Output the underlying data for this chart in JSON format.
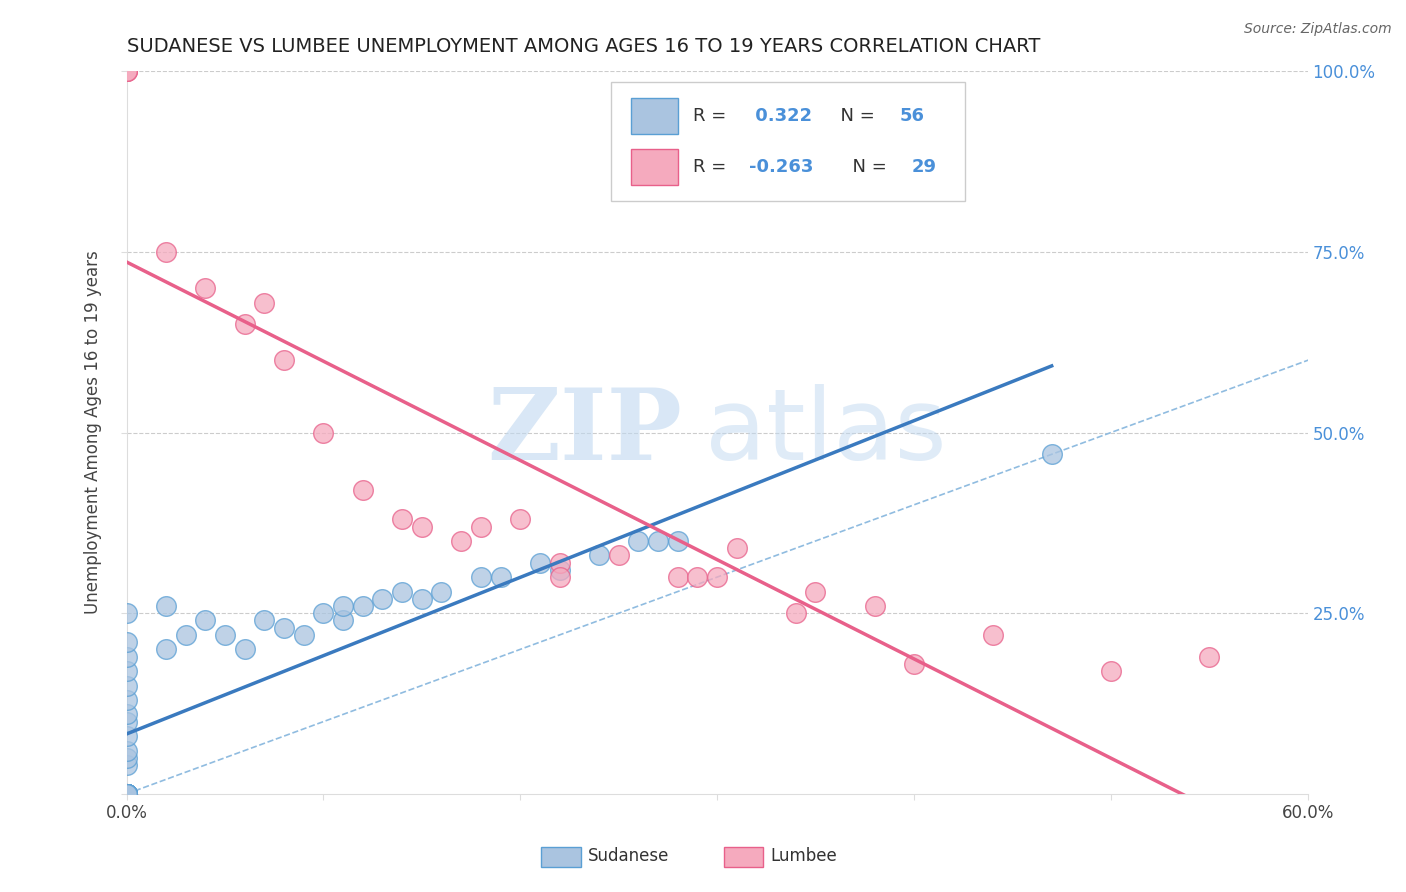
{
  "title": "SUDANESE VS LUMBEE UNEMPLOYMENT AMONG AGES 16 TO 19 YEARS CORRELATION CHART",
  "source": "Source: ZipAtlas.com",
  "ylabel": "Unemployment Among Ages 16 to 19 years",
  "xlim": [
    0.0,
    0.6
  ],
  "ylim": [
    0.0,
    1.0
  ],
  "xticks": [
    0.0,
    0.1,
    0.2,
    0.3,
    0.4,
    0.5,
    0.6
  ],
  "xticklabels": [
    "0.0%",
    "",
    "",
    "",
    "",
    "",
    "60.0%"
  ],
  "yticks": [
    0.0,
    0.25,
    0.5,
    0.75,
    1.0
  ],
  "yticklabels_right": [
    "",
    "25.0%",
    "50.0%",
    "75.0%",
    "100.0%"
  ],
  "sudanese_R": 0.322,
  "sudanese_N": 56,
  "lumbee_R": -0.263,
  "lumbee_N": 29,
  "sudanese_color": "#aac4e0",
  "lumbee_color": "#f5aabe",
  "sudanese_edge_color": "#5a9fd4",
  "lumbee_edge_color": "#e8608a",
  "sudanese_line_color": "#3a7abf",
  "lumbee_line_color": "#e8608a",
  "ref_line_color": "#90bce0",
  "grid_color": "#cccccc",
  "background_color": "#ffffff",
  "watermark_zip": "ZIP",
  "watermark_atlas": "atlas",
  "watermark_zip_color": "#c0d8f0",
  "watermark_atlas_color": "#c0d8f0",
  "sudanese_x": [
    0.0,
    0.0,
    0.0,
    0.0,
    0.0,
    0.0,
    0.0,
    0.0,
    0.0,
    0.0,
    0.0,
    0.0,
    0.0,
    0.0,
    0.0,
    0.0,
    0.0,
    0.0,
    0.0,
    0.0,
    0.0,
    0.0,
    0.0,
    0.0,
    0.0,
    0.0,
    0.0,
    0.0,
    0.0,
    0.0,
    0.02,
    0.02,
    0.03,
    0.04,
    0.05,
    0.06,
    0.07,
    0.08,
    0.09,
    0.1,
    0.11,
    0.11,
    0.12,
    0.13,
    0.14,
    0.15,
    0.16,
    0.18,
    0.19,
    0.21,
    0.22,
    0.24,
    0.26,
    0.27,
    0.28,
    0.47
  ],
  "sudanese_y": [
    0.0,
    0.0,
    0.0,
    0.0,
    0.0,
    0.0,
    0.0,
    0.0,
    0.0,
    0.0,
    0.0,
    0.0,
    0.0,
    0.0,
    0.0,
    0.0,
    0.0,
    0.0,
    0.04,
    0.05,
    0.06,
    0.08,
    0.1,
    0.11,
    0.13,
    0.15,
    0.17,
    0.19,
    0.21,
    0.25,
    0.2,
    0.26,
    0.22,
    0.24,
    0.22,
    0.2,
    0.24,
    0.23,
    0.22,
    0.25,
    0.24,
    0.26,
    0.26,
    0.27,
    0.28,
    0.27,
    0.28,
    0.3,
    0.3,
    0.32,
    0.31,
    0.33,
    0.35,
    0.35,
    0.35,
    0.47
  ],
  "lumbee_x": [
    0.0,
    0.0,
    0.0,
    0.02,
    0.04,
    0.06,
    0.07,
    0.08,
    0.1,
    0.12,
    0.14,
    0.15,
    0.17,
    0.18,
    0.2,
    0.22,
    0.22,
    0.25,
    0.28,
    0.29,
    0.3,
    0.31,
    0.34,
    0.35,
    0.38,
    0.4,
    0.44,
    0.5,
    0.55
  ],
  "lumbee_y": [
    1.0,
    1.0,
    1.0,
    0.75,
    0.7,
    0.65,
    0.68,
    0.6,
    0.5,
    0.42,
    0.38,
    0.37,
    0.35,
    0.37,
    0.38,
    0.32,
    0.3,
    0.33,
    0.3,
    0.3,
    0.3,
    0.34,
    0.25,
    0.28,
    0.26,
    0.18,
    0.22,
    0.17,
    0.19
  ]
}
